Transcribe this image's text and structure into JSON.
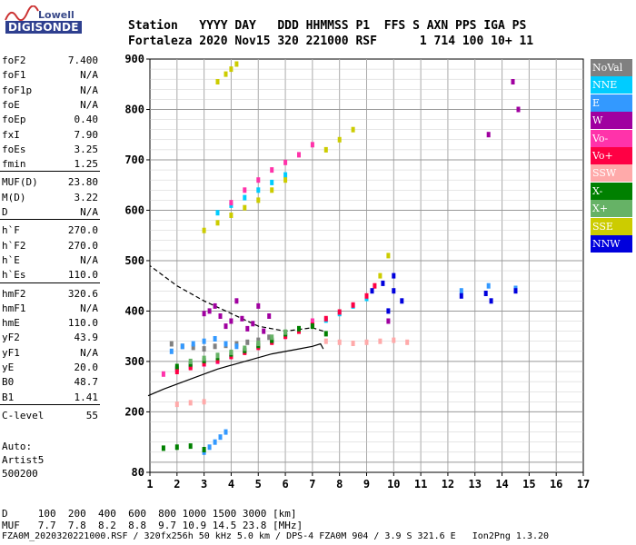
{
  "logo": {
    "line1": "Lowell",
    "line2": "DIGISONDE"
  },
  "header": {
    "line1": "Station   YYYY DAY   DDD HHMMSS P1  FFS S AXN PPS IGA PS",
    "line2": "Fortaleza 2020 Nov15 320 221000 RSF      1 714 100 10+ 11"
  },
  "params": [
    {
      "k": "foF2",
      "v": "7.400"
    },
    {
      "k": "foF1",
      "v": "N/A"
    },
    {
      "k": "foF1p",
      "v": "N/A"
    },
    {
      "k": "foE",
      "v": "N/A"
    },
    {
      "k": "foEp",
      "v": "0.40"
    },
    {
      "k": "fxI",
      "v": "7.90"
    },
    {
      "k": "foEs",
      "v": "3.25"
    },
    {
      "k": "fmin",
      "v": "1.25"
    },
    {
      "k": "MUF(D)",
      "v": "23.80"
    },
    {
      "k": "M(D)",
      "v": "3.22"
    },
    {
      "k": "D",
      "v": "N/A"
    },
    {
      "k": "h`F",
      "v": "270.0"
    },
    {
      "k": "h`F2",
      "v": "270.0"
    },
    {
      "k": "h`E",
      "v": "N/A"
    },
    {
      "k": "h`Es",
      "v": "110.0"
    },
    {
      "k": "hmF2",
      "v": "320.6"
    },
    {
      "k": "hmF1",
      "v": "N/A"
    },
    {
      "k": "hmE",
      "v": "110.0"
    },
    {
      "k": "yF2",
      "v": "43.9"
    },
    {
      "k": "yF1",
      "v": "N/A"
    },
    {
      "k": "yE",
      "v": "20.0"
    },
    {
      "k": "B0",
      "v": "48.7"
    },
    {
      "k": "B1",
      "v": "1.41"
    },
    {
      "k": "C-level",
      "v": "55"
    }
  ],
  "auto": {
    "line1": "Auto:",
    "line2": "Artist5",
    "line3": "500200"
  },
  "footer": {
    "line1": "D     100  200  400  600  800 1000 1500 3000 [km]",
    "line2": "MUF   7.7  7.8  8.2  8.8  9.7 10.9 14.5 23.8 [MHz]",
    "line3": "FZA0M_2020320221000.RSF / 320fx256h 50 kHz 5.0 km / DPS-4 FZA0M 904 / 3.9 S 321.6 E   Ion2Png 1.3.20"
  },
  "legend": [
    {
      "label": "NoVal",
      "color": "#808080"
    },
    {
      "label": "NNE",
      "color": "#00ccff"
    },
    {
      "label": "E",
      "color": "#3399ff"
    },
    {
      "label": "W",
      "color": "#a000a0"
    },
    {
      "label": "Vo-",
      "color": "#ff33aa"
    },
    {
      "label": "Vo+",
      "color": "#ff0044"
    },
    {
      "label": "SSW",
      "color": "#ffaaaa"
    },
    {
      "label": "X-",
      "color": "#008000"
    },
    {
      "label": "X+",
      "color": "#66b266"
    },
    {
      "label": "SSE",
      "color": "#cccc00"
    },
    {
      "label": "NNW",
      "color": "#0000dd"
    }
  ],
  "chart_data": {
    "type": "scatter",
    "xlim": [
      1,
      17
    ],
    "ylim": [
      80,
      900
    ],
    "x_ticks": [
      "1",
      "2",
      "3",
      "4",
      "5",
      "6",
      "7",
      "8",
      "9",
      "10",
      "11",
      "12",
      "13",
      "14",
      "15",
      "16",
      "17"
    ],
    "y_ticks": [
      "80",
      "200",
      "300",
      "400",
      "500",
      "600",
      "700",
      "800",
      "900"
    ],
    "grid": true,
    "legend_position": "right",
    "profile_curve": {
      "x": [
        0.6,
        1.5,
        2.5,
        3.5,
        4.5,
        5.5,
        6.5,
        7.0,
        7.3,
        7.4
      ],
      "y": [
        232,
        245,
        265,
        285,
        300,
        315,
        325,
        330,
        335,
        325
      ]
    },
    "profile_curve_2": {
      "x": [
        7.4,
        7.0,
        6.0,
        5.0,
        4.0,
        3.0,
        2.0,
        1.0
      ],
      "y": [
        360,
        367,
        360,
        370,
        395,
        420,
        450,
        490
      ]
    },
    "series": [
      {
        "name": "NoVal",
        "x": [
          1.8,
          2.2,
          2.6,
          3.0,
          3.4,
          3.8,
          4.2,
          4.6,
          5.0,
          5.4
        ],
        "y": [
          335,
          330,
          328,
          325,
          330,
          332,
          335,
          338,
          342,
          348
        ]
      },
      {
        "name": "NNE",
        "x": [
          2.0,
          2.5,
          3.0,
          3.5,
          4.0,
          4.5,
          5.0,
          5.5,
          6.0,
          6.5,
          7.0,
          7.5,
          8.0,
          8.5,
          9.0,
          3.5,
          4.0,
          4.5,
          5.0,
          5.5,
          6.0
        ],
        "y": [
          285,
          292,
          300,
          305,
          312,
          320,
          330,
          340,
          352,
          362,
          372,
          382,
          395,
          410,
          425,
          595,
          610,
          625,
          640,
          655,
          670
        ]
      },
      {
        "name": "E",
        "x": [
          1.8,
          2.2,
          2.6,
          3.0,
          3.4,
          3.8,
          4.2,
          3.0,
          3.2,
          3.4,
          3.6,
          3.8,
          12.5,
          13.5,
          14.5
        ],
        "y": [
          320,
          330,
          335,
          340,
          345,
          335,
          330,
          120,
          130,
          140,
          150,
          160,
          440,
          450,
          445
        ]
      },
      {
        "name": "W",
        "x": [
          3.0,
          3.2,
          3.4,
          3.6,
          3.8,
          4.0,
          4.2,
          4.4,
          4.6,
          4.8,
          5.0,
          5.2,
          5.4,
          9.8,
          13.5,
          14.4,
          14.6
        ],
        "y": [
          395,
          400,
          410,
          390,
          370,
          380,
          420,
          385,
          365,
          375,
          410,
          360,
          390,
          380,
          750,
          855,
          800
        ]
      },
      {
        "name": "Vo-",
        "x": [
          1.5,
          2.0,
          2.5,
          3.0,
          3.5,
          4.0,
          4.5,
          5.0,
          5.5,
          6.0,
          6.5,
          7.0,
          4.0,
          4.5,
          5.0,
          5.5,
          6.0,
          6.5,
          7.0
        ],
        "y": [
          275,
          285,
          290,
          295,
          300,
          310,
          320,
          330,
          340,
          350,
          365,
          380,
          615,
          640,
          660,
          680,
          695,
          710,
          730
        ]
      },
      {
        "name": "Vo+",
        "x": [
          2.0,
          2.5,
          3.0,
          3.5,
          4.0,
          4.5,
          5.0,
          5.5,
          6.0,
          6.5,
          7.0,
          7.5,
          8.0,
          8.5,
          9.0,
          9.3
        ],
        "y": [
          280,
          288,
          296,
          302,
          310,
          318,
          328,
          338,
          350,
          360,
          372,
          385,
          398,
          412,
          430,
          450
        ]
      },
      {
        "name": "SSW",
        "x": [
          7.5,
          8.0,
          8.5,
          9.0,
          9.5,
          10.0,
          10.5,
          2.0,
          2.5,
          3.0
        ],
        "y": [
          340,
          338,
          336,
          338,
          340,
          342,
          338,
          215,
          218,
          220
        ]
      },
      {
        "name": "X-",
        "x": [
          2.0,
          2.5,
          3.0,
          3.5,
          4.0,
          4.5,
          5.0,
          5.5,
          6.0,
          6.5,
          7.0,
          7.5,
          1.5,
          2.0,
          2.5,
          3.0
        ],
        "y": [
          290,
          295,
          302,
          308,
          315,
          322,
          332,
          342,
          355,
          365,
          370,
          355,
          128,
          130,
          132,
          125
        ]
      },
      {
        "name": "X+",
        "x": [
          2.5,
          3.0,
          3.5,
          4.0,
          4.5,
          5.0,
          5.5,
          6.0
        ],
        "y": [
          300,
          306,
          312,
          318,
          326,
          336,
          348,
          358
        ]
      },
      {
        "name": "SSE",
        "x": [
          3.0,
          3.5,
          4.0,
          4.5,
          5.0,
          5.5,
          6.0,
          7.5,
          8.0,
          8.5,
          9.5,
          9.8,
          3.5,
          3.8,
          4.0,
          4.2
        ],
        "y": [
          560,
          575,
          590,
          605,
          620,
          640,
          660,
          720,
          740,
          760,
          470,
          510,
          855,
          870,
          880,
          890
        ]
      },
      {
        "name": "NNW",
        "x": [
          9.2,
          9.6,
          10.0,
          10.3,
          12.5,
          13.4,
          13.6,
          14.5,
          10.0,
          9.8
        ],
        "y": [
          440,
          455,
          470,
          420,
          430,
          435,
          420,
          440,
          440,
          400
        ]
      }
    ]
  }
}
